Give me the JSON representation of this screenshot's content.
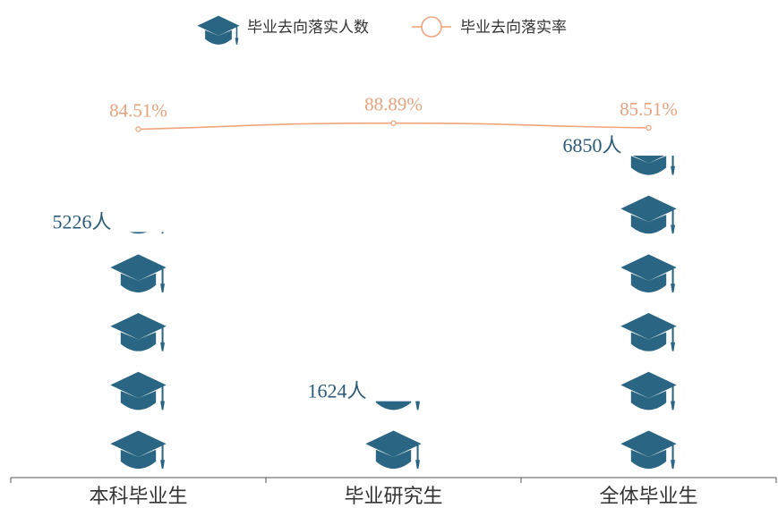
{
  "chart_data": {
    "type": "pictorial-bar",
    "categories": [
      "本科毕业生",
      "毕业研究生",
      "全体毕业生"
    ],
    "series": [
      {
        "name": "毕业去向落实人数",
        "type": "bar",
        "icon": "graduation-cap-icon",
        "values": [
          5226,
          1624,
          6850
        ],
        "labels": [
          "5226人",
          "1624人",
          "6850人"
        ],
        "color": "#2a6683"
      },
      {
        "name": "毕业去向落实率",
        "type": "line",
        "values": [
          84.51,
          88.89,
          85.51
        ],
        "labels": [
          "84.51%",
          "88.89%",
          "85.51%"
        ],
        "color": "#f0a47c"
      }
    ],
    "legend": "top-center"
  }
}
